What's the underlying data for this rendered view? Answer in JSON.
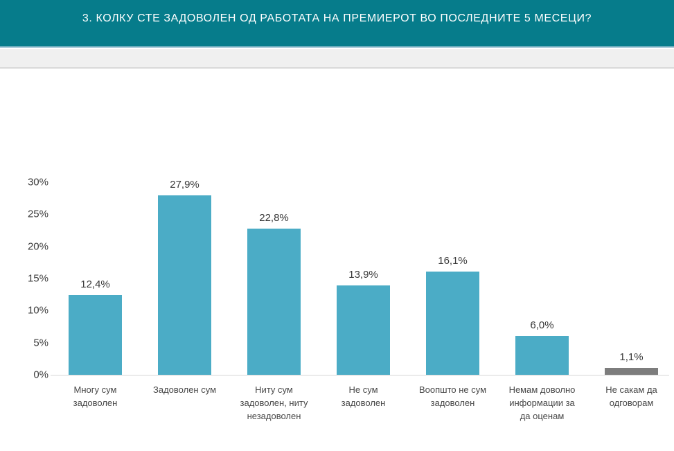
{
  "header": {
    "title": "3. КОЛКУ СТЕ ЗАДОВОЛЕН ОД РАБОТАТА НА ПРЕМИЕРОТ ВО ПОСЛЕДНИТЕ 5 МЕСЕЦИ?",
    "background_color": "#067C8B",
    "text_color": "#FFFFFF"
  },
  "sub_band": {
    "color": "#F0F0F0"
  },
  "chart_data": {
    "type": "bar",
    "title": "",
    "xlabel": "",
    "ylabel": "",
    "ylim": [
      0,
      30
    ],
    "yticks": [
      "0%",
      "5%",
      "10%",
      "15%",
      "20%",
      "25%",
      "30%"
    ],
    "grid": false,
    "legend": false,
    "categories": [
      "Многу сум задоволен",
      "Задоволен сум",
      "Ниту сум задоволен, ниту незадоволен",
      "Не сум задоволен",
      "Воопшто не сум задоволен",
      "Немам доволно информации за да оценам",
      "Не сакам да одговорам"
    ],
    "category_lines": [
      [
        "Многу сум",
        "задоволен"
      ],
      [
        "Задоволен сум"
      ],
      [
        "Ниту сум",
        "задоволен, ниту",
        "незадоволен"
      ],
      [
        "Не сум",
        "задоволен"
      ],
      [
        "Воопшто не сум",
        "задоволен"
      ],
      [
        "Немам доволно",
        "информации за",
        "да оценам"
      ],
      [
        "Не сакам да",
        "одговорам"
      ]
    ],
    "values": [
      12.4,
      27.9,
      22.8,
      13.9,
      16.1,
      6.0,
      1.1
    ],
    "value_labels": [
      "12,4%",
      "27,9%",
      "22,8%",
      "13,9%",
      "16,1%",
      "6,0%",
      "1,1%"
    ],
    "bar_colors": [
      "#4BACC6",
      "#4BACC6",
      "#4BACC6",
      "#4BACC6",
      "#4BACC6",
      "#4BACC6",
      "#7D7D7D"
    ]
  },
  "colors": {
    "bar_teal": "#4BACC6",
    "bar_gray": "#7D7D7D",
    "axis_line": "#D6D6D6",
    "header_separator": "#A7CAD9"
  }
}
